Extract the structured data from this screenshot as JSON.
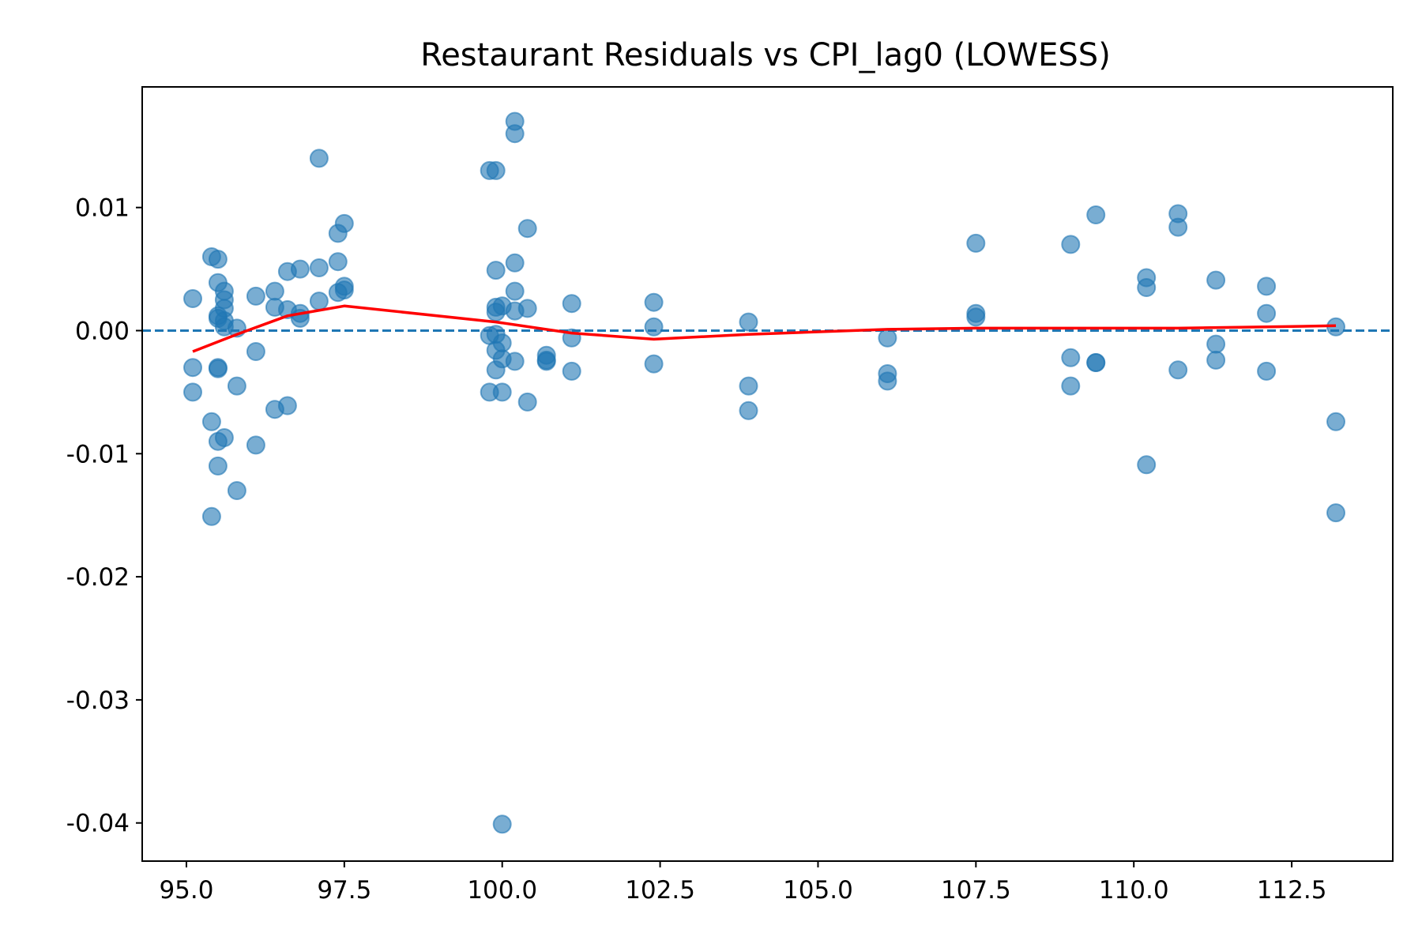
{
  "chart_data": {
    "type": "scatter",
    "title": "Restaurant Residuals vs CPI_lag0 (LOWESS)",
    "xlabel": "",
    "ylabel": "",
    "xlim": [
      94.3,
      114.1
    ],
    "ylim": [
      -0.0431,
      0.0198
    ],
    "grid": false,
    "x_ticks": [
      95.0,
      97.5,
      100.0,
      102.5,
      105.0,
      107.5,
      110.0,
      112.5
    ],
    "x_tick_labels": [
      "95.0",
      "97.5",
      "100.0",
      "102.5",
      "105.0",
      "107.5",
      "110.0",
      "112.5"
    ],
    "y_ticks": [
      0.01,
      0.0,
      -0.01,
      -0.02,
      -0.03,
      -0.04
    ],
    "y_tick_labels": [
      "0.01",
      "0.00",
      "-0.01",
      "-0.02",
      "-0.03",
      "-0.04"
    ],
    "reference_line": {
      "y": 0.0,
      "style": "dashed",
      "color": "#1f77b4"
    },
    "colors": {
      "points": "#1f77b4",
      "lowess": "#ff0000",
      "reference": "#1f77b4"
    },
    "points": [
      [
        95.1,
        0.0026
      ],
      [
        95.1,
        -0.003
      ],
      [
        95.1,
        -0.005
      ],
      [
        95.4,
        0.006
      ],
      [
        95.4,
        -0.0074
      ],
      [
        95.4,
        -0.0151
      ],
      [
        95.5,
        0.0058
      ],
      [
        95.5,
        0.0039
      ],
      [
        95.5,
        0.0012
      ],
      [
        95.5,
        0.001
      ],
      [
        95.5,
        -0.003
      ],
      [
        95.5,
        -0.0031
      ],
      [
        95.5,
        -0.009
      ],
      [
        95.5,
        -0.011
      ],
      [
        95.6,
        0.0032
      ],
      [
        95.6,
        0.0025
      ],
      [
        95.6,
        0.0018
      ],
      [
        95.6,
        0.0008
      ],
      [
        95.6,
        0.0003
      ],
      [
        95.6,
        -0.0087
      ],
      [
        95.8,
        0.0002
      ],
      [
        95.8,
        -0.0045
      ],
      [
        95.8,
        -0.013
      ],
      [
        96.1,
        0.0028
      ],
      [
        96.1,
        -0.0017
      ],
      [
        96.1,
        -0.0093
      ],
      [
        96.4,
        0.0032
      ],
      [
        96.4,
        0.0019
      ],
      [
        96.4,
        -0.0064
      ],
      [
        96.6,
        0.0048
      ],
      [
        96.6,
        0.0017
      ],
      [
        96.6,
        -0.0061
      ],
      [
        96.8,
        0.005
      ],
      [
        96.8,
        0.0014
      ],
      [
        96.8,
        0.001
      ],
      [
        97.1,
        0.014
      ],
      [
        97.1,
        0.0051
      ],
      [
        97.1,
        0.0024
      ],
      [
        97.4,
        0.0079
      ],
      [
        97.4,
        0.0056
      ],
      [
        97.4,
        0.0031
      ],
      [
        97.5,
        0.0087
      ],
      [
        97.5,
        0.0036
      ],
      [
        97.5,
        0.0033
      ],
      [
        99.8,
        0.013
      ],
      [
        99.8,
        -0.0004
      ],
      [
        99.8,
        -0.005
      ],
      [
        99.9,
        0.013
      ],
      [
        99.9,
        0.0049
      ],
      [
        99.9,
        0.0019
      ],
      [
        99.9,
        0.0015
      ],
      [
        99.9,
        -0.0003
      ],
      [
        99.9,
        -0.0016
      ],
      [
        99.9,
        -0.0032
      ],
      [
        100.0,
        0.002
      ],
      [
        100.0,
        -0.001
      ],
      [
        100.0,
        -0.0023
      ],
      [
        100.0,
        -0.005
      ],
      [
        100.0,
        -0.0401
      ],
      [
        100.2,
        0.017
      ],
      [
        100.2,
        0.016
      ],
      [
        100.2,
        0.0055
      ],
      [
        100.2,
        0.0032
      ],
      [
        100.2,
        0.0016
      ],
      [
        100.2,
        -0.0025
      ],
      [
        100.4,
        0.0083
      ],
      [
        100.4,
        0.0018
      ],
      [
        100.4,
        -0.0058
      ],
      [
        100.7,
        -0.002
      ],
      [
        100.7,
        -0.0024
      ],
      [
        100.7,
        -0.0025
      ],
      [
        101.1,
        0.0022
      ],
      [
        101.1,
        -0.0006
      ],
      [
        101.1,
        -0.0033
      ],
      [
        102.4,
        0.0023
      ],
      [
        102.4,
        0.0003
      ],
      [
        102.4,
        -0.0027
      ],
      [
        103.9,
        0.0007
      ],
      [
        103.9,
        -0.0045
      ],
      [
        103.9,
        -0.0065
      ],
      [
        106.1,
        -0.0006
      ],
      [
        106.1,
        -0.0035
      ],
      [
        106.1,
        -0.0041
      ],
      [
        107.5,
        0.0071
      ],
      [
        107.5,
        0.0014
      ],
      [
        107.5,
        0.0011
      ],
      [
        109.0,
        0.007
      ],
      [
        109.0,
        -0.0022
      ],
      [
        109.0,
        -0.0045
      ],
      [
        109.4,
        0.0094
      ],
      [
        109.4,
        -0.0026
      ],
      [
        109.4,
        -0.0026
      ],
      [
        110.2,
        0.0043
      ],
      [
        110.2,
        0.0035
      ],
      [
        110.2,
        -0.0109
      ],
      [
        110.7,
        0.0095
      ],
      [
        110.7,
        0.0084
      ],
      [
        110.7,
        -0.0032
      ],
      [
        111.3,
        0.0041
      ],
      [
        111.3,
        -0.0011
      ],
      [
        111.3,
        -0.0024
      ],
      [
        112.1,
        0.0036
      ],
      [
        112.1,
        0.0014
      ],
      [
        112.1,
        -0.0033
      ],
      [
        113.2,
        0.0003
      ],
      [
        113.2,
        -0.0074
      ],
      [
        113.2,
        -0.0148
      ]
    ],
    "lowess": [
      [
        95.1,
        -0.0017
      ],
      [
        95.8,
        -0.0003
      ],
      [
        96.6,
        0.0012
      ],
      [
        97.5,
        0.002
      ],
      [
        99.9,
        0.0007
      ],
      [
        101.1,
        -0.0002
      ],
      [
        102.4,
        -0.0007
      ],
      [
        103.9,
        -0.0003
      ],
      [
        106.1,
        0.0001
      ],
      [
        107.5,
        0.0002
      ],
      [
        109.4,
        0.0002
      ],
      [
        110.7,
        0.0002
      ],
      [
        112.1,
        0.0003
      ],
      [
        113.2,
        0.0004
      ]
    ]
  }
}
